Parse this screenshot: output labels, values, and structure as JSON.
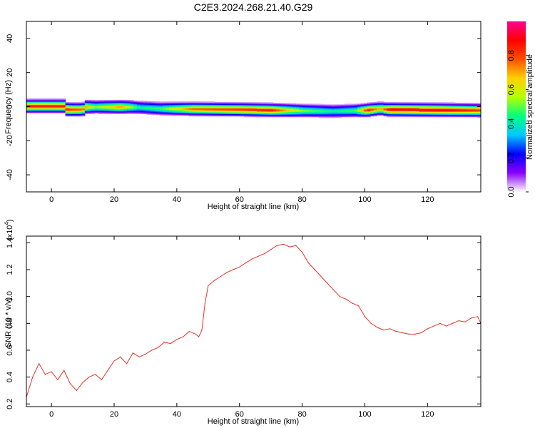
{
  "title": "C2E3.2024.268.21.40.G29",
  "chart_data": [
    {
      "type": "heatmap",
      "xlabel": "Height of straight line (km)",
      "ylabel": "Frequency (Hz)",
      "xlim": [
        -8,
        137
      ],
      "ylim": [
        -50,
        50
      ],
      "xticks": [
        0,
        20,
        40,
        60,
        80,
        100,
        120
      ],
      "yticks": [
        -40,
        -20,
        0,
        20,
        40
      ],
      "colorbar": {
        "label": "Normalized spectral amplitude",
        "range": [
          0.0,
          1.0
        ],
        "ticks": [
          0.0,
          0.2,
          0.4,
          0.6,
          0.8
        ],
        "colors": [
          "#ffffff",
          "#8a00ff",
          "#0000ff",
          "#00c8ff",
          "#00ff80",
          "#b4ff00",
          "#ffd000",
          "#ff5000",
          "#ff0000",
          "#ff0090"
        ]
      },
      "band": {
        "center_hz": [
          [
            -8,
            0.5
          ],
          [
            4,
            0.5
          ],
          [
            5,
            -1.5
          ],
          [
            10,
            -1.5
          ],
          [
            11,
            0
          ],
          [
            25,
            0
          ],
          [
            35,
            -1
          ],
          [
            60,
            -1.5
          ],
          [
            90,
            -2.5
          ],
          [
            100,
            -2
          ],
          [
            105,
            -1
          ],
          [
            107,
            -1.5
          ],
          [
            137,
            -2
          ]
        ],
        "peak_ridge": [
          [
            -8,
            0.9
          ],
          [
            4,
            0.9
          ],
          [
            6,
            0.85
          ],
          [
            10,
            0.8
          ],
          [
            14,
            0.55
          ],
          [
            22,
            0.75
          ],
          [
            28,
            0.45
          ],
          [
            35,
            0.5
          ],
          [
            45,
            0.8
          ],
          [
            70,
            0.9
          ],
          [
            80,
            0.55
          ],
          [
            90,
            0.45
          ],
          [
            97,
            0.5
          ],
          [
            101,
            0.9
          ],
          [
            105,
            0.7
          ],
          [
            108,
            0.95
          ],
          [
            125,
            0.95
          ],
          [
            137,
            0.85
          ]
        ]
      }
    },
    {
      "type": "line",
      "xlabel": "Height of straight line (km)",
      "ylabel": "SNR (10 * v/v)",
      "y_multiplier": "(x10",
      "y_multiplier_exp": "4",
      "xlim": [
        -8,
        137
      ],
      "ylim": [
        0.18,
        1.45
      ],
      "xticks": [
        0,
        20,
        40,
        60,
        80,
        100,
        120
      ],
      "yticks": [
        0.2,
        0.4,
        0.6,
        0.8,
        1.0,
        1.2,
        1.4
      ],
      "line_color": "#e8322a",
      "series": [
        {
          "x": [
            -8,
            -6,
            -4,
            -2,
            0,
            2,
            4,
            6,
            8,
            10,
            12,
            14,
            16,
            18,
            20,
            22,
            24,
            26,
            28,
            30,
            32,
            34,
            36,
            38,
            40,
            42,
            44,
            46,
            47,
            48,
            49,
            50,
            52,
            54,
            56,
            58,
            60,
            62,
            64,
            66,
            68,
            70,
            72,
            74,
            76,
            78,
            80,
            82,
            84,
            86,
            88,
            90,
            92,
            94,
            96,
            98,
            100,
            102,
            104,
            106,
            108,
            110,
            112,
            114,
            116,
            118,
            120,
            122,
            124,
            126,
            128,
            130,
            132,
            134,
            136,
            137
          ],
          "y": [
            0.25,
            0.4,
            0.5,
            0.42,
            0.44,
            0.38,
            0.45,
            0.35,
            0.3,
            0.36,
            0.4,
            0.42,
            0.38,
            0.45,
            0.52,
            0.55,
            0.5,
            0.58,
            0.55,
            0.57,
            0.6,
            0.62,
            0.66,
            0.65,
            0.68,
            0.7,
            0.74,
            0.72,
            0.7,
            0.75,
            0.95,
            1.08,
            1.12,
            1.15,
            1.18,
            1.2,
            1.22,
            1.25,
            1.28,
            1.3,
            1.32,
            1.35,
            1.38,
            1.39,
            1.37,
            1.38,
            1.33,
            1.25,
            1.2,
            1.15,
            1.1,
            1.05,
            1.0,
            0.98,
            0.95,
            0.93,
            0.85,
            0.8,
            0.77,
            0.75,
            0.76,
            0.74,
            0.73,
            0.72,
            0.72,
            0.73,
            0.76,
            0.78,
            0.8,
            0.78,
            0.8,
            0.82,
            0.81,
            0.84,
            0.85,
            0.8
          ]
        }
      ]
    }
  ]
}
